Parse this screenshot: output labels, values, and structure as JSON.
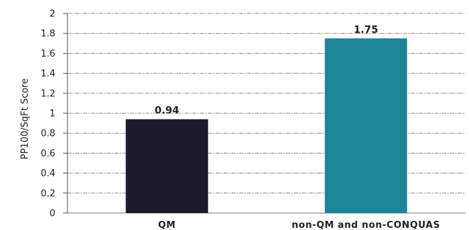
{
  "chart_data": {
    "type": "bar",
    "categories": [
      "QM",
      "non-QM and non-CONQUAS"
    ],
    "values": [
      0.94,
      1.75
    ],
    "data_labels": [
      "0.94",
      "1.75"
    ],
    "title": "",
    "xlabel": "",
    "ylabel": "PP100/SqFt Score",
    "ylim": [
      0,
      2
    ],
    "y_ticks": [
      "0",
      "0.2",
      "0.4",
      "0.6",
      "0.8",
      "1",
      "1.2",
      "1.4",
      "1.6",
      "1.8",
      "2"
    ],
    "grid": true,
    "legend": "none",
    "colors": [
      "#1c1a2b",
      "#1c8596"
    ]
  }
}
